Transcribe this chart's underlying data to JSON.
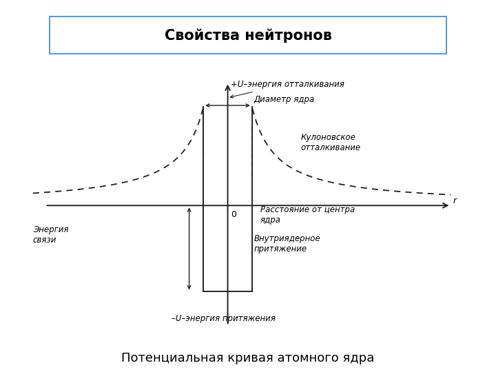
{
  "title": "Свойства нейтронов",
  "subtitle": "Потенциальная кривая атомного ядра",
  "title_fontsize": 15,
  "subtitle_fontsize": 13,
  "background_color": "#ffffff",
  "border_color": "#5b9bd5",
  "text_color": "#000000",
  "ann_plus_u": "+U–энергия отталкивания",
  "ann_diameter": "Диаметр ядра",
  "ann_coulomb": "Кулоновское\nотталкивание",
  "ann_binding": "Энергия\nсвязи",
  "ann_distance": "Расстояние от центра\nядра",
  "ann_nuclear": "Внутриядерное\nпритяжение",
  "ann_minus_u": "–U–энергия притяжения",
  "ann_zero": "0",
  "ann_r": "r"
}
